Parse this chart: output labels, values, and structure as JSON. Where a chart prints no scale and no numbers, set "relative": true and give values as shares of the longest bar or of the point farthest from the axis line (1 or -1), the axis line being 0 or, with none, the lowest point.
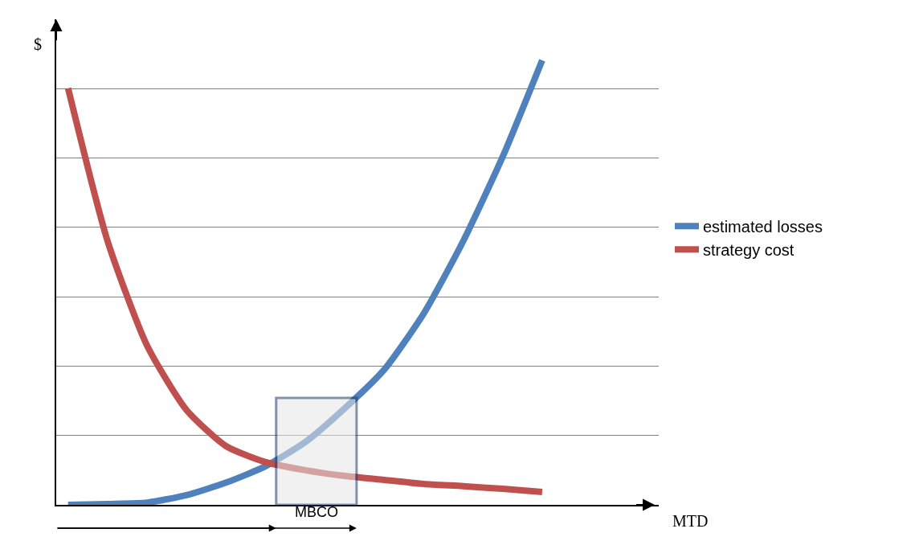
{
  "chart_data": {
    "type": "line",
    "relative": true,
    "ylabel": "$",
    "categories": [
      null,
      null,
      null,
      null,
      null,
      null,
      null,
      null,
      null,
      null,
      null,
      null,
      null
    ],
    "series": [
      {
        "name": "estimated losses",
        "color": "#4f81bd",
        "values": [
          0,
          0.002,
          0.005,
          0.022,
          0.05,
          0.087,
          0.141,
          0.217,
          0.304,
          0.43,
          0.593,
          0.783,
          1
        ]
      },
      {
        "name": "strategy cost",
        "color": "#c0504d",
        "values": [
          0.937,
          0.593,
          0.358,
          0.213,
          0.132,
          0.096,
          0.078,
          0.065,
          0.056,
          0.047,
          0.042,
          0.036,
          0.029
        ]
      }
    ],
    "annotations": [
      "MBCO",
      "MTD"
    ],
    "grid": "y",
    "legend": "right",
    "marker": "none",
    "line_style": "solid"
  }
}
